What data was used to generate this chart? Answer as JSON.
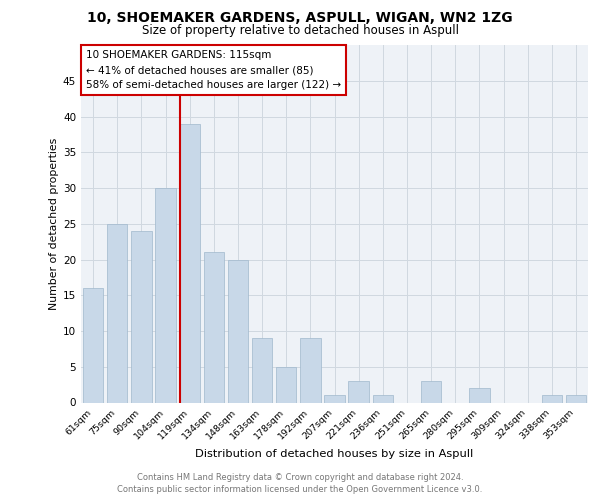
{
  "title_line1": "10, SHOEMAKER GARDENS, ASPULL, WIGAN, WN2 1ZG",
  "title_line2": "Size of property relative to detached houses in Aspull",
  "xlabel": "Distribution of detached houses by size in Aspull",
  "ylabel": "Number of detached properties",
  "categories": [
    "61sqm",
    "75sqm",
    "90sqm",
    "104sqm",
    "119sqm",
    "134sqm",
    "148sqm",
    "163sqm",
    "178sqm",
    "192sqm",
    "207sqm",
    "221sqm",
    "236sqm",
    "251sqm",
    "265sqm",
    "280sqm",
    "295sqm",
    "309sqm",
    "324sqm",
    "338sqm",
    "353sqm"
  ],
  "values": [
    16,
    25,
    24,
    30,
    39,
    21,
    20,
    9,
    5,
    9,
    1,
    3,
    1,
    0,
    3,
    0,
    2,
    0,
    0,
    1,
    1
  ],
  "bar_color": "#c8d8e8",
  "bar_edge_color": "#a0b8cc",
  "annotation_title": "10 SHOEMAKER GARDENS: 115sqm",
  "annotation_line1": "← 41% of detached houses are smaller (85)",
  "annotation_line2": "58% of semi-detached houses are larger (122) →",
  "annotation_box_color": "#ffffff",
  "annotation_box_edge_color": "#cc0000",
  "vline_color": "#cc0000",
  "grid_color": "#d0d8e0",
  "background_color": "#eef2f7",
  "footer_line1": "Contains HM Land Registry data © Crown copyright and database right 2024.",
  "footer_line2": "Contains public sector information licensed under the Open Government Licence v3.0.",
  "ylim": [
    0,
    50
  ],
  "yticks": [
    0,
    5,
    10,
    15,
    20,
    25,
    30,
    35,
    40,
    45
  ],
  "vline_x": 3.58
}
